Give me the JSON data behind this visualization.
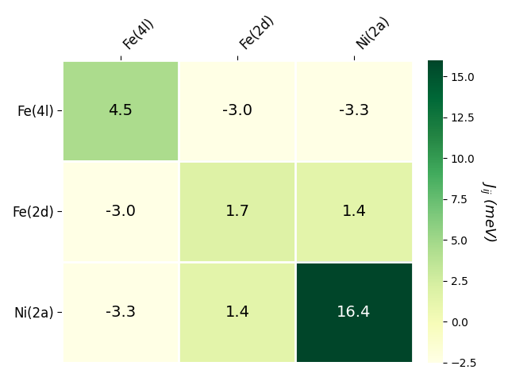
{
  "labels": [
    "Fe(4l)",
    "Fe(2d)",
    "Ni(2a)"
  ],
  "matrix": [
    [
      4.5,
      -3.0,
      -3.3
    ],
    [
      -3.0,
      1.7,
      1.4
    ],
    [
      -3.3,
      1.4,
      16.4
    ]
  ],
  "vmin": -2.5,
  "vmax": 16.0,
  "colormap": "YlGn",
  "cbar_label": "$J_{ij}$ (meV)",
  "text_color_threshold": 8.0,
  "cell_linewidth": 2.0,
  "cell_linecolor": "white",
  "figsize": [
    6.4,
    4.8
  ],
  "dpi": 100,
  "cbar_ticks": [
    -2.5,
    0.0,
    2.5,
    5.0,
    7.5,
    10.0,
    12.5,
    15.0
  ],
  "annotation_fontsize": 14,
  "tick_fontsize": 12,
  "cbar_label_fontsize": 13
}
